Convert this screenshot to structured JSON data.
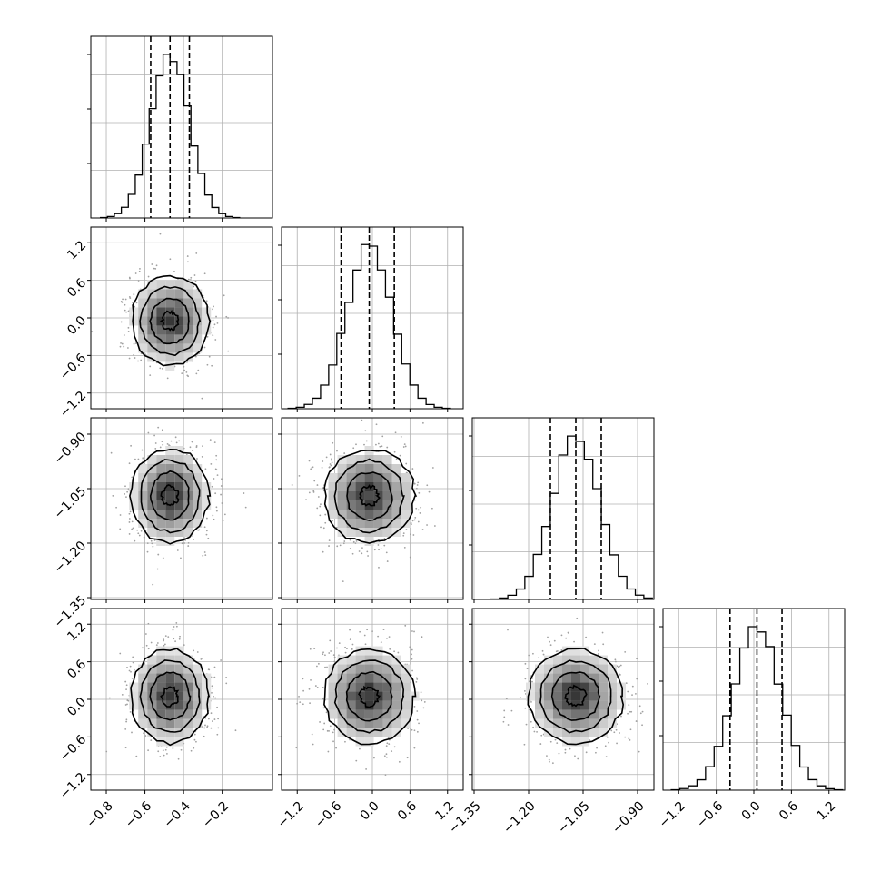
{
  "chart_data": {
    "type": "corner",
    "title": "",
    "n_params": 4,
    "param_labels": [
      "",
      "",
      "",
      ""
    ],
    "ranges": [
      [
        -0.88,
        0.06
      ],
      [
        -1.45,
        1.45
      ],
      [
        -1.355,
        -0.855
      ],
      [
        -1.45,
        1.45
      ]
    ],
    "ticks": [
      [
        -0.8,
        -0.6,
        -0.4,
        -0.2
      ],
      [
        -1.2,
        -0.6,
        0.0,
        0.6,
        1.2
      ],
      [
        -1.35,
        -1.2,
        -1.05,
        -0.9
      ],
      [
        -1.2,
        -0.6,
        0.0,
        0.6,
        1.2
      ]
    ],
    "tick_labels": [
      [
        "−0.8",
        "−0.6",
        "−0.4",
        "−0.2"
      ],
      [
        "−1.2",
        "−0.6",
        "0.0",
        "0.6",
        "1.2"
      ],
      [
        "−1.35",
        "−1.20",
        "−1.05",
        "−0.90"
      ],
      [
        "−1.2",
        "−0.6",
        "0.0",
        "0.6",
        "1.2"
      ]
    ],
    "means": [
      -0.47,
      -0.05,
      -1.07,
      0.05
    ],
    "stds": [
      0.1,
      0.36,
      0.065,
      0.38
    ],
    "quantiles": [
      [
        -0.57,
        -0.47,
        -0.37
      ],
      [
        -0.5,
        -0.05,
        0.35
      ],
      [
        -1.14,
        -1.07,
        -1.0
      ],
      [
        -0.38,
        0.05,
        0.45
      ]
    ],
    "histogram_bins": 20,
    "contour_levels": 4,
    "grid": true,
    "colors": {
      "line": "#000000",
      "density": "#555555",
      "points": "#a0a0a0",
      "grid": "#b0b0b0"
    }
  }
}
